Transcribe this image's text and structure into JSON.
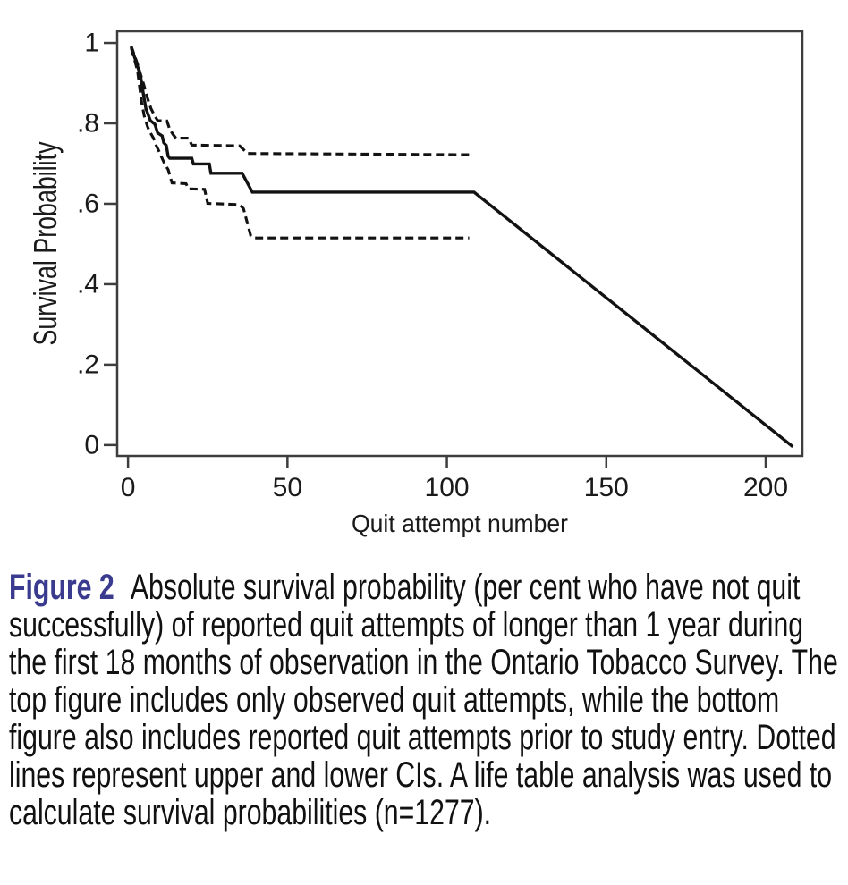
{
  "figure": {
    "caption_label": "Figure 2",
    "caption_text": "Absolute survival probability (per cent who have not quit successfully) of reported quit attempts of longer than 1 year during the first 18 months of observation in the Ontario Tobacco Survey. The top figure includes only observed quit attempts, while the bottom figure also includes reported quit attempts prior to study entry. Dotted lines represent upper and lower CIs. A life table analysis was used to calculate survival probabilities (n=1277)."
  },
  "colors": {
    "axis": "#3d3d3d",
    "line": "#121212",
    "text": "#1a1a1a",
    "caption_label": "#3a3a8f",
    "caption_text": "#111111",
    "background": "#ffffff"
  },
  "chart_data": {
    "type": "line",
    "title": "",
    "xlabel": "Quit attempt number",
    "ylabel": "Survival Probability",
    "xlim": [
      0,
      210
    ],
    "ylim": [
      0,
      1
    ],
    "grid": false,
    "legend": "none",
    "frame": "box",
    "x_ticks": {
      "values": [
        0,
        50,
        100,
        150,
        200
      ],
      "labels": [
        "0",
        "50",
        "100",
        "150",
        "200"
      ]
    },
    "y_ticks": {
      "values": [
        0,
        0.2,
        0.4,
        0.6,
        0.8,
        1
      ],
      "labels": [
        "0",
        ".2",
        ".4",
        ".6",
        ".8",
        "1"
      ]
    },
    "series": [
      {
        "name": "survival",
        "label": "Survival probability (solid line)",
        "line": "solid",
        "points": [
          [
            1,
            0.99
          ],
          [
            1.5,
            0.978
          ],
          [
            2,
            0.966
          ],
          [
            2.5,
            0.954
          ],
          [
            3,
            0.942
          ],
          [
            3.5,
            0.928
          ],
          [
            4,
            0.914
          ],
          [
            4.7,
            0.878
          ],
          [
            5.6,
            0.837
          ],
          [
            7,
            0.807
          ],
          [
            8.4,
            0.798
          ],
          [
            9.3,
            0.776
          ],
          [
            10.7,
            0.769
          ],
          [
            11.2,
            0.752
          ],
          [
            12,
            0.745
          ],
          [
            12.6,
            0.718
          ],
          [
            13.1,
            0.713
          ],
          [
            20,
            0.713
          ],
          [
            20.5,
            0.699
          ],
          [
            25.5,
            0.699
          ],
          [
            26,
            0.676
          ],
          [
            35.8,
            0.676
          ],
          [
            39,
            0.629
          ],
          [
            108.5,
            0.629
          ],
          [
            208.5,
            -0.004
          ]
        ]
      },
      {
        "name": "upper_ci",
        "label": "Upper CI (dotted line)",
        "line": "dashed",
        "points": [
          [
            1,
            0.992
          ],
          [
            2,
            0.97
          ],
          [
            3,
            0.947
          ],
          [
            4,
            0.92
          ],
          [
            5,
            0.895
          ],
          [
            6.1,
            0.863
          ],
          [
            7.2,
            0.837
          ],
          [
            8.4,
            0.818
          ],
          [
            9.3,
            0.807
          ],
          [
            12.2,
            0.806
          ],
          [
            13.1,
            0.785
          ],
          [
            14,
            0.774
          ],
          [
            15,
            0.763
          ],
          [
            19,
            0.763
          ],
          [
            20,
            0.746
          ],
          [
            35,
            0.744
          ],
          [
            37.5,
            0.725
          ],
          [
            108,
            0.722
          ]
        ]
      },
      {
        "name": "lower_ci",
        "label": "Lower CI (dotted line)",
        "line": "dashed",
        "points": [
          [
            1,
            0.987
          ],
          [
            2,
            0.96
          ],
          [
            3,
            0.93
          ],
          [
            4.2,
            0.855
          ],
          [
            5.1,
            0.818
          ],
          [
            6.1,
            0.792
          ],
          [
            6.7,
            0.781
          ],
          [
            8,
            0.763
          ],
          [
            8.9,
            0.744
          ],
          [
            9.8,
            0.729
          ],
          [
            10.8,
            0.711
          ],
          [
            11.7,
            0.696
          ],
          [
            12.6,
            0.685
          ],
          [
            13.8,
            0.652
          ],
          [
            18.2,
            0.65
          ],
          [
            19,
            0.637
          ],
          [
            24,
            0.636
          ],
          [
            25,
            0.601
          ],
          [
            35,
            0.598
          ],
          [
            36.2,
            0.588
          ],
          [
            38.5,
            0.52
          ],
          [
            39.5,
            0.515
          ],
          [
            107,
            0.515
          ]
        ]
      }
    ]
  }
}
